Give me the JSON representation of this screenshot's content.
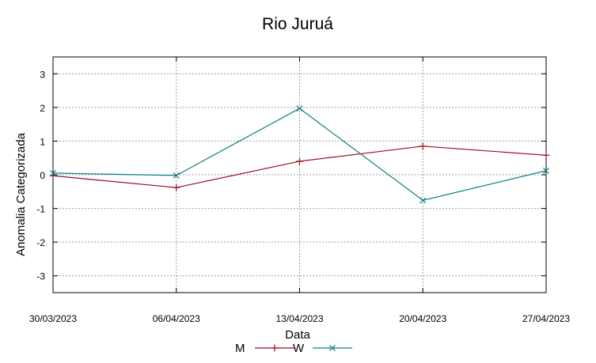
{
  "chart_data": {
    "type": "line",
    "title": "Rio Juruá",
    "xlabel": "Data",
    "ylabel": "Anomalia Categorizada",
    "x": [
      "30/03/2023",
      "06/04/2023",
      "13/04/2023",
      "20/04/2023",
      "27/04/2023"
    ],
    "ylim": [
      -3.5,
      3.5
    ],
    "yticks": [
      3,
      2,
      1,
      0,
      -1,
      -2,
      -3
    ],
    "ytick_labels": [
      "3",
      "2",
      "1",
      "0",
      "-1",
      "-2",
      "-3"
    ],
    "grid": true,
    "legend_position": "bottom",
    "series": [
      {
        "name": "M",
        "color": "#9b0d20",
        "marker": "plus",
        "values": [
          -0.03,
          -0.38,
          0.4,
          0.85,
          0.58
        ]
      },
      {
        "name": "W",
        "color": "#0f7f80",
        "marker": "cross",
        "values": [
          0.05,
          -0.02,
          1.97,
          -0.76,
          0.12
        ]
      }
    ]
  }
}
